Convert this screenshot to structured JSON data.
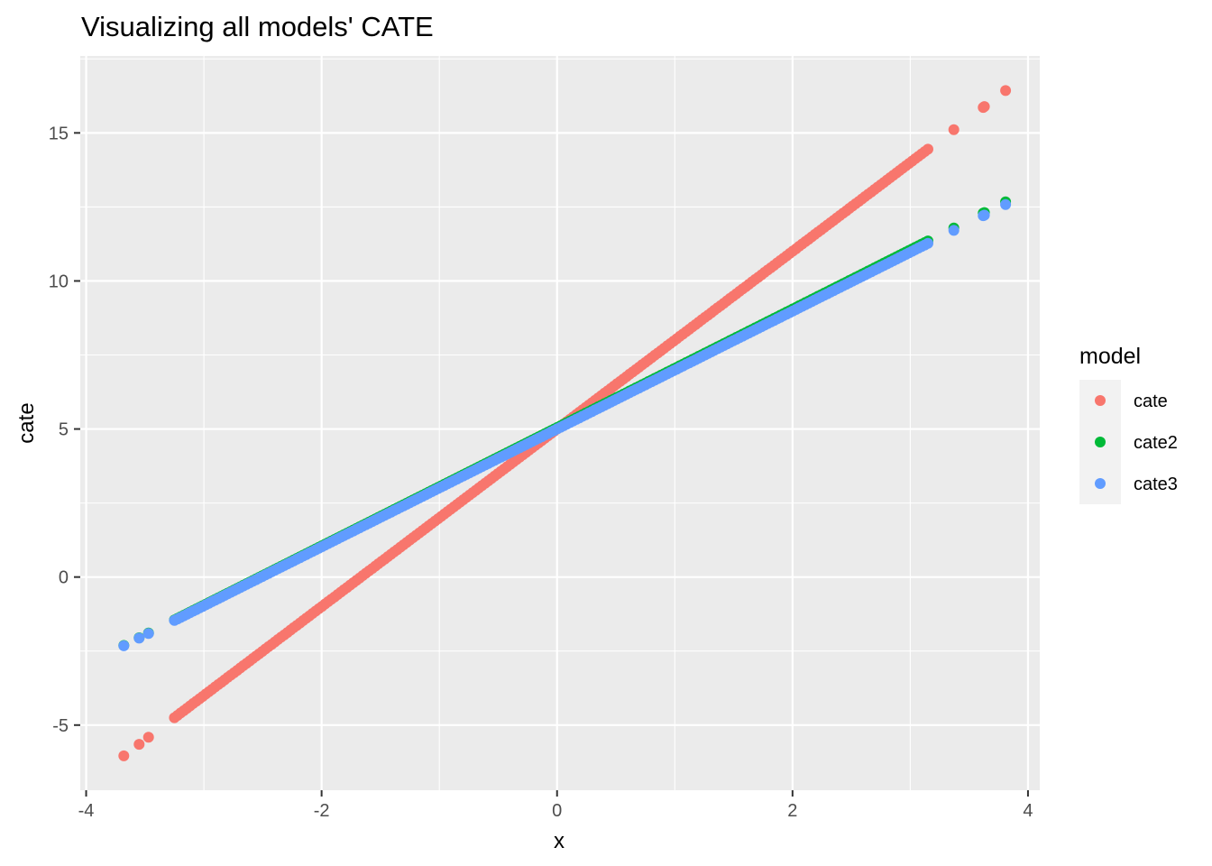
{
  "chart_data": {
    "type": "scatter",
    "title": "Visualizing all models' CATE",
    "xlabel": "x",
    "ylabel": "cate",
    "xlim": [
      -4.05,
      4.1
    ],
    "ylim": [
      -7.2,
      17.6
    ],
    "x_ticks": [
      -4,
      -2,
      0,
      2,
      4
    ],
    "x_tick_labels": [
      "-4",
      "-2",
      "0",
      "2",
      "4"
    ],
    "y_ticks": [
      -5,
      0,
      5,
      10,
      15
    ],
    "y_tick_labels": [
      "-5",
      "0",
      "5",
      "10",
      "15"
    ],
    "grid": true,
    "legend": {
      "title": "model",
      "position": "right",
      "entries": [
        "cate",
        "cate2",
        "cate3"
      ]
    },
    "x_range_dense": [
      -3.25,
      3.15
    ],
    "series": [
      {
        "name": "cate",
        "color": "#F8766D",
        "intercept": 5.0,
        "slope": 3.0,
        "outliers_x": [
          -3.68,
          -3.55,
          -3.47,
          3.37,
          3.62,
          3.63,
          3.81
        ]
      },
      {
        "name": "cate2",
        "color": "#00BA38",
        "intercept": 5.05,
        "slope": 2.0,
        "outliers_x": [
          -3.68,
          -3.55,
          -3.47,
          3.37,
          3.62,
          3.63,
          3.81
        ]
      },
      {
        "name": "cate3",
        "color": "#619CFF",
        "intercept": 5.0,
        "slope": 1.99,
        "outliers_x": [
          -3.68,
          -3.55,
          -3.47,
          3.37,
          3.62,
          3.63,
          3.81
        ]
      }
    ]
  }
}
